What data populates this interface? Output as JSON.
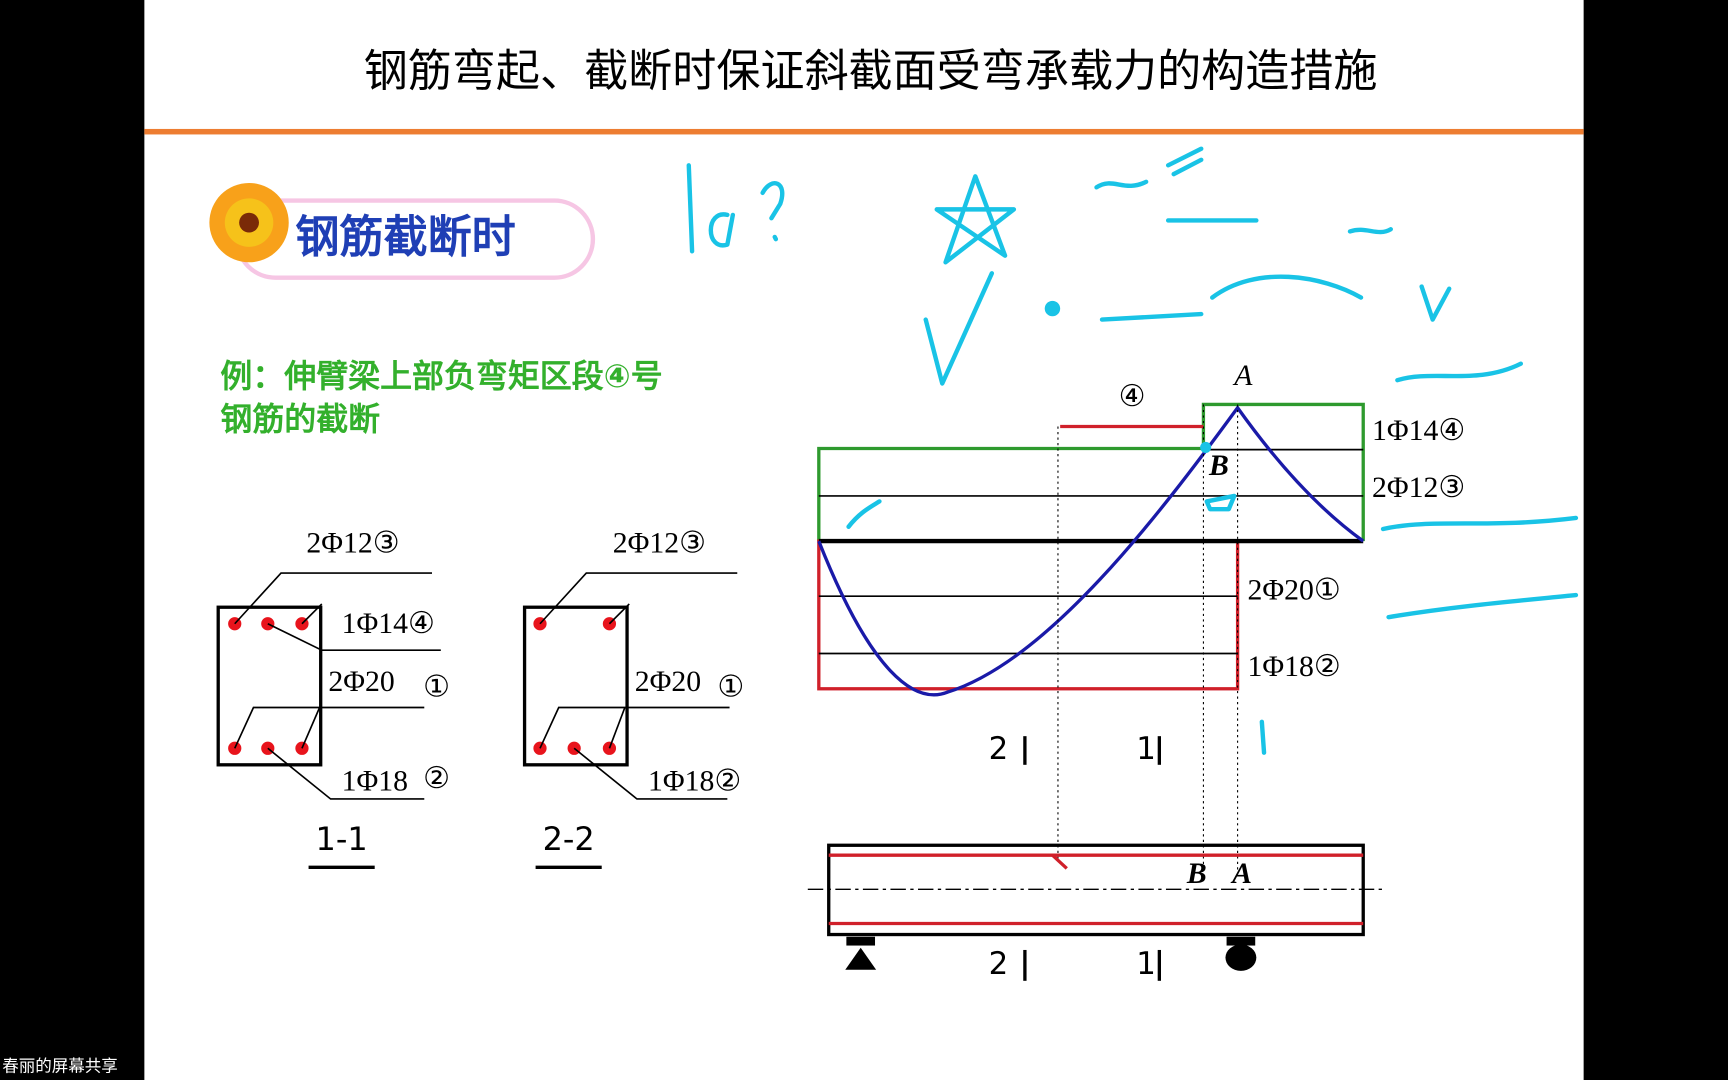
{
  "screen_share_label": "春丽的屏幕共享",
  "slide": {
    "title": "钢筋弯起、截断时保证斜截面受弯承载力的构造措施",
    "section_heading": "钢筋截断时",
    "example": [
      "例：伸臂梁上部负弯矩区段④号",
      "钢筋的截断"
    ],
    "sections": [
      {
        "name": "1-1",
        "labels": [
          "2Φ12③",
          "1Φ14④",
          "2Φ20",
          "①",
          "1Φ18",
          "②"
        ]
      },
      {
        "name": "2-2",
        "labels": [
          "2Φ12③",
          "2Φ20",
          "①",
          "1Φ18②"
        ]
      }
    ],
    "diagram": {
      "bar_labels": [
        "1Φ14④",
        "2Φ12③",
        "2Φ20①",
        "1Φ18②"
      ],
      "bar_number": "④",
      "points": [
        "A",
        "B"
      ],
      "section_marks": [
        "2",
        "1"
      ],
      "beam_points": [
        "B",
        "A"
      ],
      "beam_section_marks": [
        "2",
        "1"
      ]
    }
  }
}
